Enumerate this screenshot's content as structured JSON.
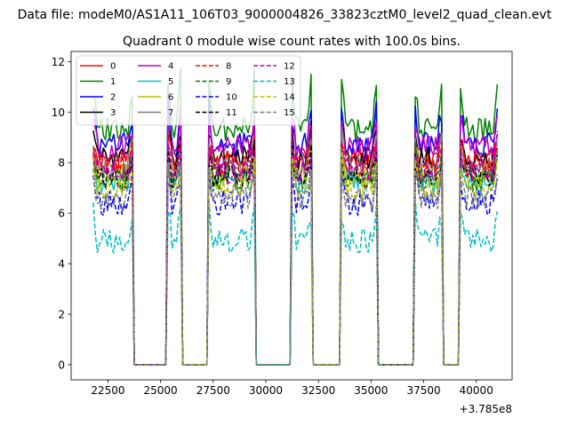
{
  "figure": {
    "suptitle": "Data file: modeM0/AS1A11_106T03_9000004826_33823cztM0_level2_quad_clean.evt",
    "title": "Quadrant 0 module wise count rates with 100.0s bins."
  },
  "chart_data": {
    "type": "line",
    "title": "Quadrant 0 module wise count rates with 100.0s bins.",
    "xlabel": "",
    "ylabel": "",
    "x_offset_label": "+3.785e8",
    "xlim": [
      20750,
      41700
    ],
    "ylim": [
      -0.6,
      12.4
    ],
    "xticks": [
      22500,
      25000,
      27500,
      30000,
      32500,
      35000,
      37500,
      40000
    ],
    "yticks": [
      0,
      2,
      4,
      6,
      8,
      10,
      12
    ],
    "grid": false,
    "legend": {
      "placement": "top-left",
      "columns": 4
    },
    "segments": [
      [
        21800,
        23650
      ],
      [
        25350,
        25950
      ],
      [
        27300,
        29450
      ],
      [
        31250,
        32150
      ],
      [
        33600,
        35250
      ],
      [
        37100,
        38350
      ],
      [
        39250,
        41000
      ]
    ],
    "series": [
      {
        "name": "0",
        "color": "#ff0000",
        "dash": "solid",
        "mean": 8.1,
        "edge_peak": 8.6,
        "seed": 1
      },
      {
        "name": "1",
        "color": "#008000",
        "dash": "solid",
        "mean": 9.3,
        "edge_peak": 11.6,
        "seed": 2
      },
      {
        "name": "2",
        "color": "#0000ff",
        "dash": "solid",
        "mean": 8.7,
        "edge_peak": 10.4,
        "seed": 3
      },
      {
        "name": "3",
        "color": "#000000",
        "dash": "solid",
        "mean": 8.2,
        "edge_peak": 9.5,
        "seed": 4
      },
      {
        "name": "4",
        "color": "#bf00bf",
        "dash": "solid",
        "mean": 8.6,
        "edge_peak": 10.0,
        "seed": 5
      },
      {
        "name": "5",
        "color": "#00bfbf",
        "dash": "solid",
        "mean": 7.2,
        "edge_peak": 8.2,
        "seed": 6
      },
      {
        "name": "6",
        "color": "#bfbf00",
        "dash": "solid",
        "mean": 7.5,
        "edge_peak": 8.8,
        "seed": 7
      },
      {
        "name": "7",
        "color": "#808080",
        "dash": "solid",
        "mean": 7.8,
        "edge_peak": 9.0,
        "seed": 8
      },
      {
        "name": "8",
        "color": "#ff0000",
        "dash": "dashed",
        "mean": 7.9,
        "edge_peak": 8.9,
        "seed": 9
      },
      {
        "name": "9",
        "color": "#008000",
        "dash": "dashed",
        "mean": 7.3,
        "edge_peak": 8.4,
        "seed": 10
      },
      {
        "name": "10",
        "color": "#0000ff",
        "dash": "dashed",
        "mean": 6.4,
        "edge_peak": 8.0,
        "seed": 11
      },
      {
        "name": "11",
        "color": "#000000",
        "dash": "dashed",
        "mean": 7.4,
        "edge_peak": 8.6,
        "seed": 12
      },
      {
        "name": "12",
        "color": "#bf00bf",
        "dash": "dashed",
        "mean": 7.7,
        "edge_peak": 8.8,
        "seed": 13
      },
      {
        "name": "13",
        "color": "#00bfbf",
        "dash": "dashed",
        "mean": 4.9,
        "edge_peak": 6.4,
        "seed": 14
      },
      {
        "name": "14",
        "color": "#bfbf00",
        "dash": "dashed",
        "mean": 7.0,
        "edge_peak": 8.2,
        "seed": 15
      },
      {
        "name": "15",
        "color": "#808080",
        "dash": "dashed",
        "mean": 6.6,
        "edge_peak": 7.8,
        "seed": 16
      }
    ]
  }
}
